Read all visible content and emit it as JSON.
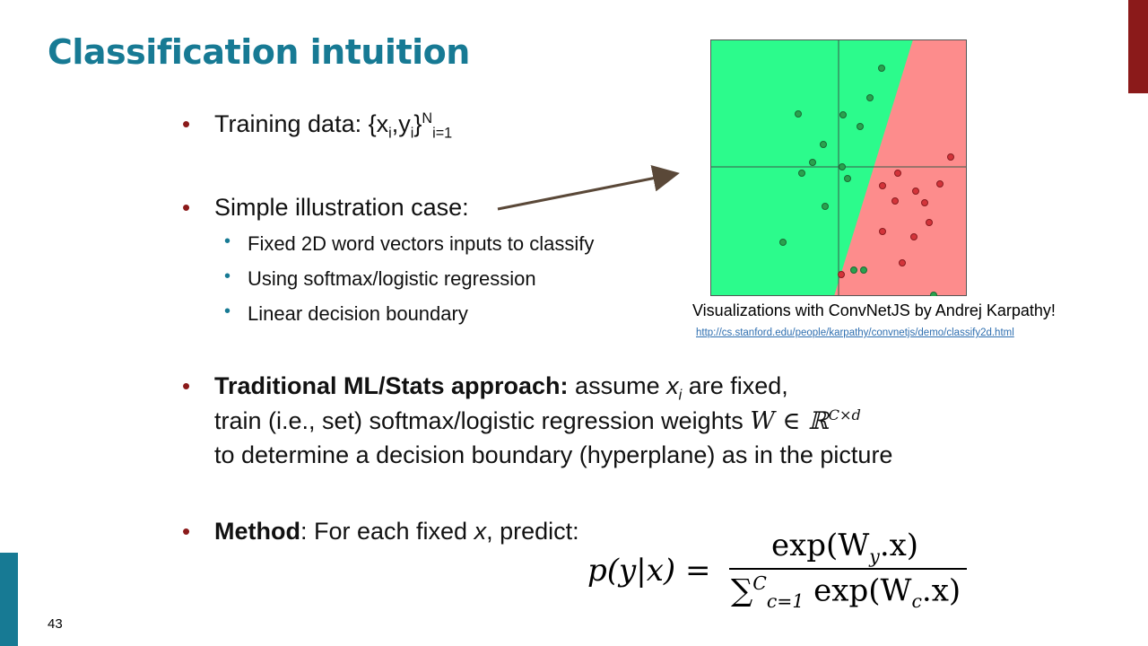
{
  "slide": {
    "title": "Classification intuition",
    "page_number": "43"
  },
  "bullets": {
    "training_prefix": "Training data: {x",
    "training_sub_i": "i",
    "training_comma": ",y",
    "training_sub_i2": "i",
    "training_close": "}",
    "training_sup": "N",
    "training_sub": "i=1",
    "simple": "Simple illustration case:",
    "sub_items": [
      "Fixed 2D word vectors inputs to classify",
      "Using softmax/logistic regression",
      "Linear decision boundary"
    ],
    "traditional_bold": "Traditional ML/Stats approach:",
    "traditional_rest1": " assume ",
    "traditional_x": "x",
    "traditional_xi": "i",
    "traditional_rest2": " are fixed,",
    "traditional_line2": "train (i.e., set) softmax/logistic regression weights ",
    "traditional_W": "W ∈ ℝ",
    "traditional_Wsup": "C×d",
    "traditional_line3": "to determine a decision boundary (hyperplane) as in the picture",
    "method_bold": "Method",
    "method_rest1": ": For each fixed ",
    "method_x": "x",
    "method_rest2": ", predict:"
  },
  "figure": {
    "caption": "Visualizations with ConvNetJS by Andrej Karpathy!",
    "link": "http://cs.stanford.edu/people/karpathy/convnetjs/demo/classify2d.html",
    "colors": {
      "green_region": "#2cfb8c",
      "red_region": "#fd8c8c",
      "green_point": "#2aa14e",
      "red_point": "#d3343a",
      "arrow": "#5a4838"
    }
  },
  "formula": {
    "lhs": "p(y|x) =",
    "numerator": "exp(W",
    "num_sub": "y",
    "num_end": ".x)",
    "den_sum": "∑",
    "den_sup": "C",
    "den_sub": "c=1",
    "den_rest": " exp(W",
    "den_sub2": "c",
    "den_end": ".x)"
  },
  "colors": {
    "title": "#177a94",
    "bullet_red": "#8b1a1a",
    "bullet_teal": "#177a94"
  }
}
